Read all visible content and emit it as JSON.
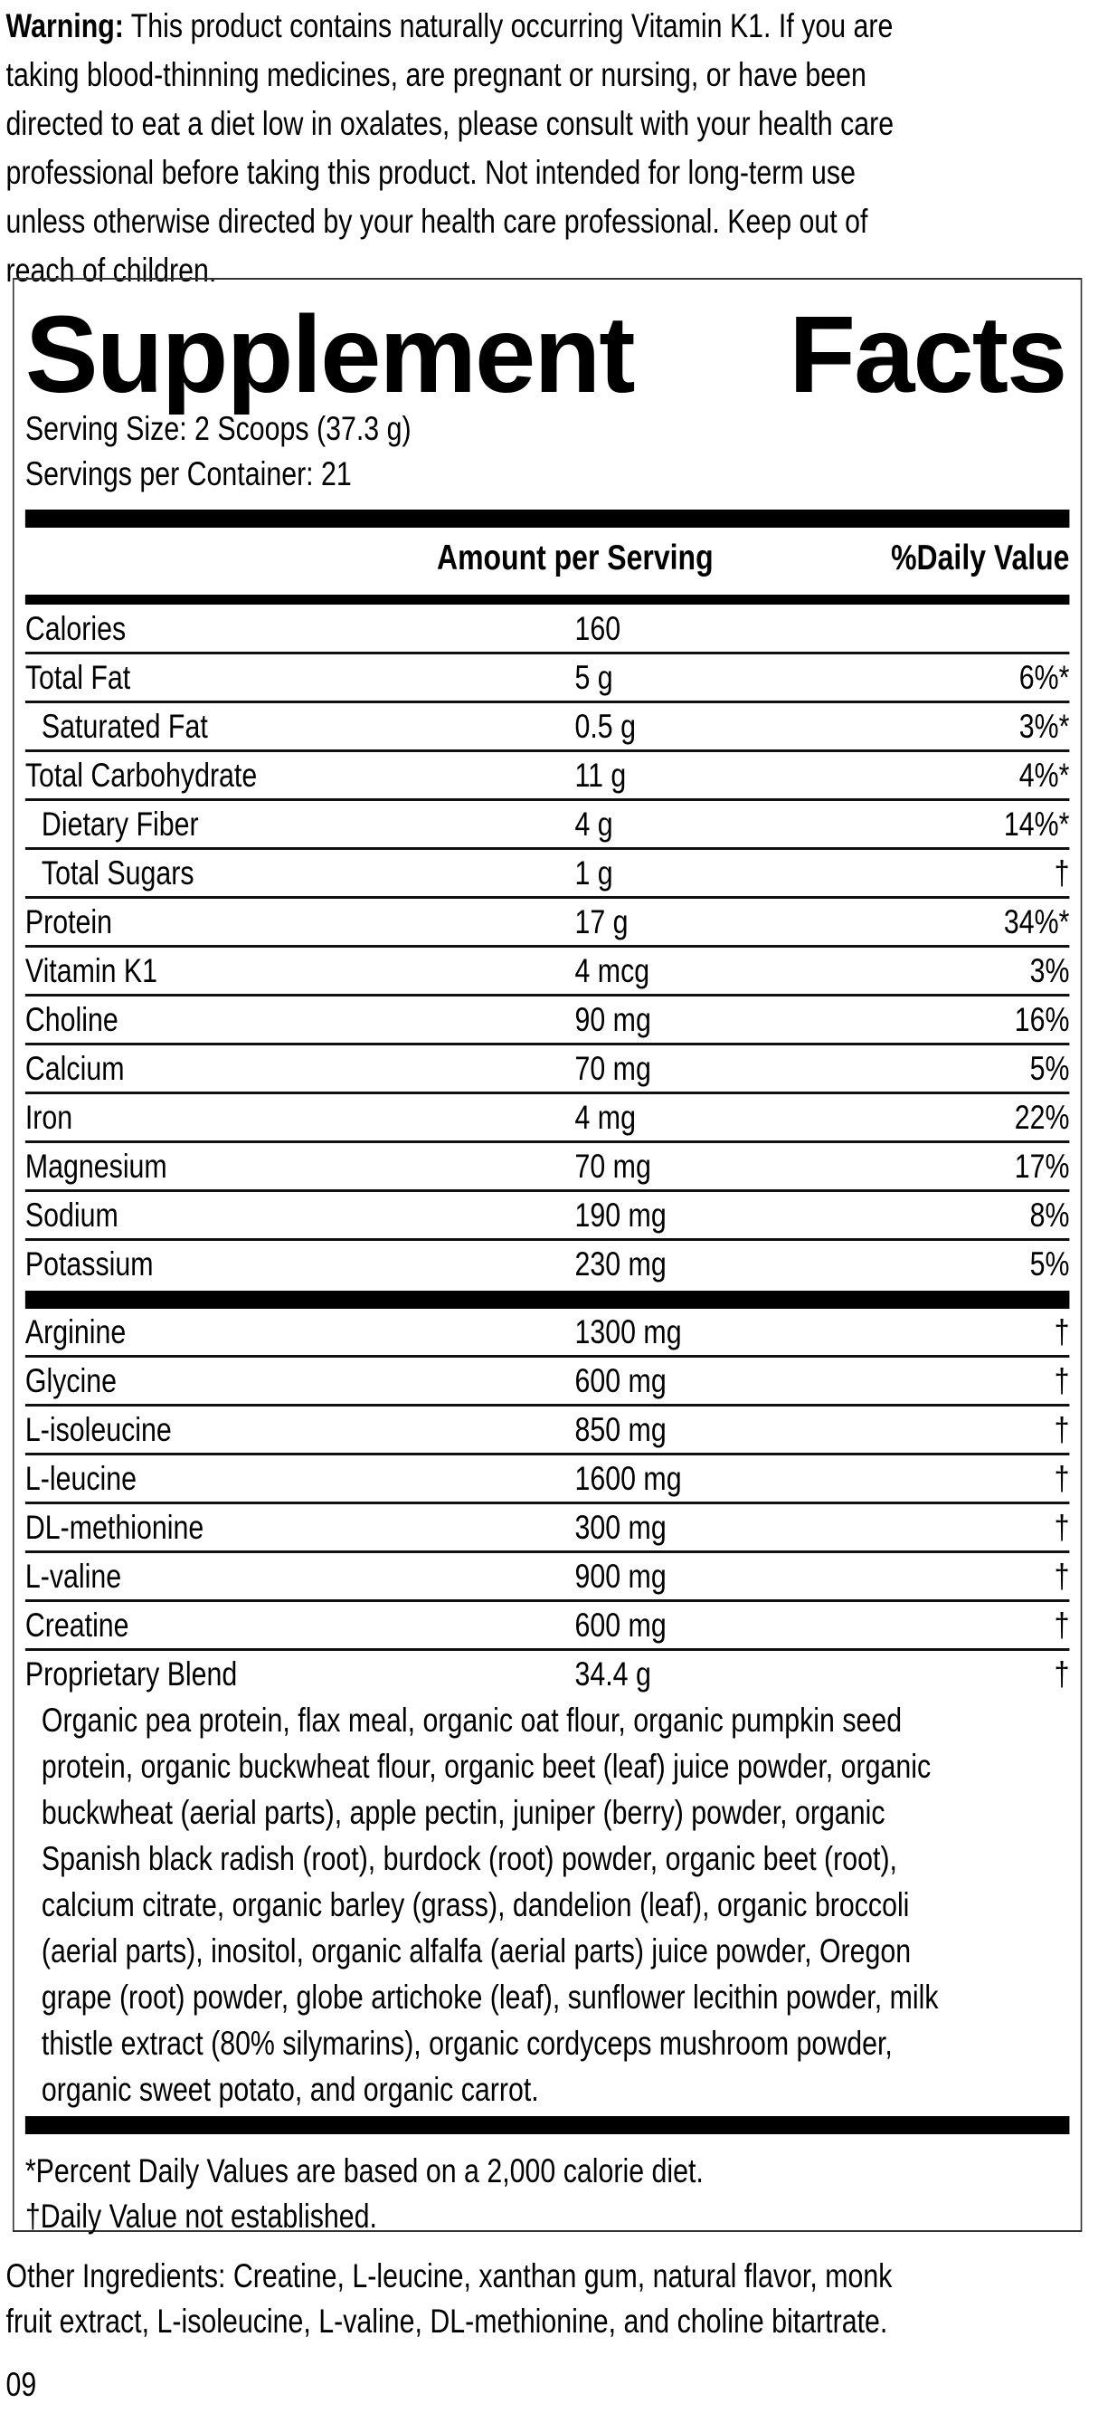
{
  "warning": {
    "label": "Warning:",
    "lines": [
      " This product contains naturally occurring Vitamin K1. If you are",
      "taking blood-thinning medicines, are pregnant or nursing, or have been",
      "directed to eat a diet low in oxalates, please consult with your health care",
      "professional before taking this product. Not intended for long-term use",
      "unless otherwise directed by your health care professional. Keep out of",
      "reach of children."
    ]
  },
  "panel": {
    "title_word1": "Supplement",
    "title_word2": "Facts",
    "serving_size": "Serving Size: 2 Scoops (37.3 g)",
    "servings_per_container": "Servings per Container: 21",
    "header_amount": "Amount per Serving",
    "header_dv": "%Daily Value",
    "nutrients": [
      {
        "name": "Calories",
        "amount": "160",
        "dv": ""
      },
      {
        "name": "Total Fat",
        "amount": "5 g",
        "dv": "6%*"
      },
      {
        "name": "Saturated Fat",
        "amount": "0.5 g",
        "dv": "3%*"
      },
      {
        "name": "Total Carbohydrate",
        "amount": "11 g",
        "dv": "4%*"
      },
      {
        "name": "Dietary Fiber",
        "amount": "4 g",
        "dv": "14%*"
      },
      {
        "name": "Total Sugars",
        "amount": "1 g",
        "dv": "†"
      },
      {
        "name": "Protein",
        "amount": "17 g",
        "dv": "34%*"
      },
      {
        "name": "Vitamin K1",
        "amount": "4 mcg",
        "dv": "3%"
      },
      {
        "name": "Choline",
        "amount": "90 mg",
        "dv": "16%"
      },
      {
        "name": "Calcium",
        "amount": "70 mg",
        "dv": "5%"
      },
      {
        "name": "Iron",
        "amount": "4 mg",
        "dv": "22%"
      },
      {
        "name": "Magnesium",
        "amount": "70 mg",
        "dv": "17%"
      },
      {
        "name": "Sodium",
        "amount": "190 mg",
        "dv": "8%"
      },
      {
        "name": "Potassium",
        "amount": "230 mg",
        "dv": "5%"
      }
    ],
    "other_nutrients": [
      {
        "name": "Arginine",
        "amount": "1300 mg",
        "dv": "†"
      },
      {
        "name": "Glycine",
        "amount": "600 mg",
        "dv": "†"
      },
      {
        "name": "L-isoleucine",
        "amount": "850 mg",
        "dv": "†"
      },
      {
        "name": "L-leucine",
        "amount": "1600 mg",
        "dv": "†"
      },
      {
        "name": "DL-methionine",
        "amount": "300 mg",
        "dv": "†"
      },
      {
        "name": "L-valine",
        "amount": "900 mg",
        "dv": "†"
      },
      {
        "name": "Creatine",
        "amount": "600 mg",
        "dv": "†"
      },
      {
        "name": "Proprietary Blend",
        "amount": "34.4 g",
        "dv": "†"
      }
    ],
    "blend_lines": [
      "Organic pea protein, flax meal, organic oat flour, organic pumpkin seed",
      "protein, organic buckwheat flour, organic beet (leaf) juice powder, organic",
      "buckwheat (aerial parts), apple pectin, juniper (berry) powder, organic",
      "Spanish black radish (root), burdock (root) powder, organic beet (root),",
      "calcium citrate, organic barley (grass), dandelion (leaf), organic broccoli",
      "(aerial parts), inositol, organic alfalfa (aerial parts) juice powder, Oregon",
      "grape (root) powder, globe artichoke (leaf), sunflower lecithin powder, milk",
      "thistle extract (80% silymarins), organic cordyceps mushroom powder,",
      "organic sweet potato, and organic carrot."
    ],
    "footnote1": "*Percent Daily Values are based on a 2,000 calorie diet.",
    "footnote2": "†Daily Value not established."
  },
  "other_ingredients": [
    "Other Ingredients: Creatine, L-leucine, xanthan gum, natural flavor, monk",
    "fruit extract, L-isoleucine, L-valine, DL-methionine, and choline bitartrate."
  ],
  "code": "09"
}
